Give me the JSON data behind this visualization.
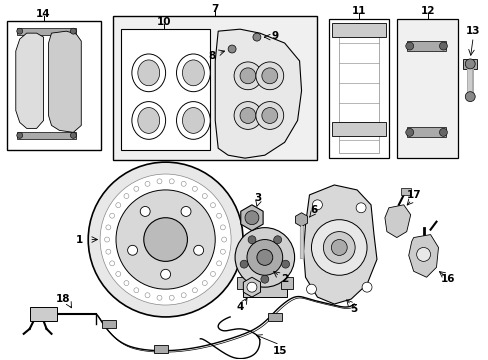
{
  "bg_color": "#ffffff",
  "line_color": "#000000",
  "fill_light": "#eeeeee",
  "fill_mid": "#cccccc",
  "fill_dark": "#999999",
  "label_fontsize": 7.5,
  "figsize": [
    4.89,
    3.6
  ],
  "dpi": 100
}
